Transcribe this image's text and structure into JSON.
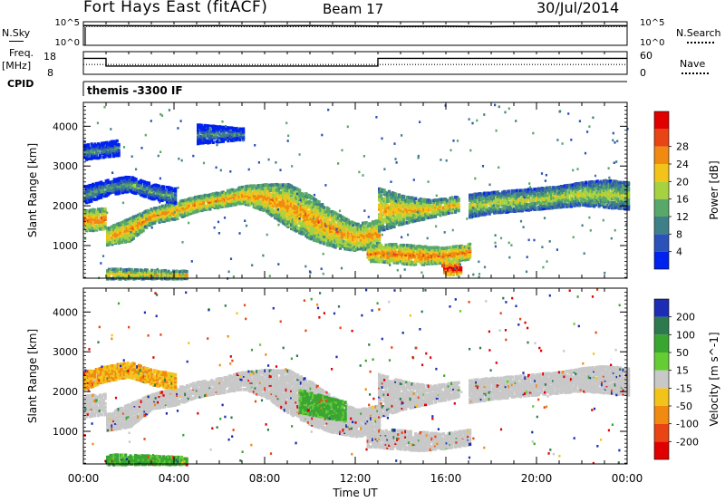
{
  "header": {
    "station": "Fort Hays East (fitACF)",
    "beam": "Beam 17",
    "date": "30/Jul/2014"
  },
  "side_labels": {
    "nsky": "N.Sky",
    "freq": "Freq.",
    "freq_unit": "[MHz]",
    "cpid": "CPID",
    "nsearch": "N.Search",
    "nave": "Nave",
    "cpid_value": "themis -3300 IF"
  },
  "chart_data": [
    {
      "type": "line",
      "panel": "noise",
      "ylim_left": [
        1,
        100000
      ],
      "yticks_left": [
        "10^5",
        "10^0"
      ],
      "yticks_right": [
        "10^5",
        "10^0"
      ],
      "series": [
        {
          "name": "N.Sky",
          "style": "solid",
          "x": [
            0,
            1,
            2,
            4,
            6,
            8,
            10,
            12,
            14,
            16,
            18,
            20,
            22,
            24
          ],
          "y": [
            30000,
            28000,
            28000,
            25000,
            30000,
            25000,
            30000,
            25000,
            20000,
            22000,
            18000,
            22000,
            25000,
            28000
          ]
        },
        {
          "name": "N.Search",
          "style": "dotted",
          "x": [
            0,
            4,
            8,
            12,
            16,
            20,
            24
          ],
          "y": [
            20000,
            18000,
            16000,
            15000,
            14000,
            15000,
            18000
          ]
        }
      ]
    },
    {
      "type": "line",
      "panel": "frequency",
      "yticks_left": [
        "18",
        "8"
      ],
      "yticks_right": [
        "60",
        "0"
      ],
      "series": [
        {
          "name": "Freq.",
          "style": "solid",
          "x": [
            0,
            1,
            1,
            13,
            13,
            24
          ],
          "y": [
            16,
            16,
            11,
            11,
            16,
            16
          ]
        },
        {
          "name": "Nave",
          "style": "dotted",
          "x": [
            0,
            24
          ],
          "y": [
            12,
            12
          ]
        }
      ],
      "cpid": {
        "x": [
          0,
          24
        ],
        "y": [
          0,
          0
        ]
      }
    },
    {
      "type": "heatmap",
      "panel": "power",
      "xlabel": "",
      "ylabel": "Slant Range [km]",
      "xlim": [
        0,
        24
      ],
      "ylim": [
        180,
        4600
      ],
      "yticks": [
        1000,
        2000,
        3000,
        4000
      ],
      "colorbar": {
        "label": "Power [dB]",
        "ticks": [
          4,
          8,
          12,
          16,
          20,
          24,
          28
        ],
        "colors": [
          "#0022ee",
          "#2a52b8",
          "#3f7f88",
          "#58a86a",
          "#a6d242",
          "#f2c41a",
          "#f08a10",
          "#e84414",
          "#e00000"
        ]
      },
      "bands": [
        {
          "x": [
            0.0,
            0.9
          ],
          "y0": [
            1400,
            1450
          ],
          "y1": [
            1950,
            2000
          ],
          "center": 22
        },
        {
          "x": [
            1.0,
            13.0
          ],
          "y0": [
            1050,
            1150,
            1600,
            1700,
            1900,
            2000,
            2100,
            1900,
            1500,
            1200,
            1000,
            900,
            1000
          ],
          "y1": [
            1500,
            1750,
            2000,
            2150,
            2300,
            2400,
            2550,
            2600,
            2600,
            2300,
            1900,
            1600,
            1700
          ],
          "center": 20
        },
        {
          "x": [
            13.0,
            16.5
          ],
          "y0": [
            1400,
            1600,
            1750,
            1900
          ],
          "y1": [
            2500,
            2300,
            2200,
            2300
          ],
          "center": 18
        },
        {
          "x": [
            12.5,
            17.0
          ],
          "y0": [
            650,
            600,
            550,
            600,
            700
          ],
          "y1": [
            1050,
            1100,
            1050,
            1000,
            1100
          ],
          "center": 22
        },
        {
          "x": [
            17.0,
            24.0
          ],
          "y0": [
            1750,
            1850,
            1900,
            1950,
            2000,
            2050,
            2000,
            1950
          ],
          "y1": [
            2350,
            2400,
            2450,
            2500,
            2550,
            2650,
            2700,
            2650
          ],
          "center": 14
        },
        {
          "x": [
            0.0,
            4.0
          ],
          "y0": [
            2100,
            2300,
            2400,
            2200,
            2100
          ],
          "y1": [
            2550,
            2700,
            2800,
            2600,
            2500
          ],
          "center": 8
        },
        {
          "x": [
            0.0,
            1.5
          ],
          "y0": [
            3200,
            3300
          ],
          "y1": [
            3600,
            3700
          ],
          "center": 6
        },
        {
          "x": [
            5.0,
            7.0
          ],
          "y0": [
            3600,
            3700
          ],
          "y1": [
            4100,
            4000
          ],
          "center": 6
        },
        {
          "x": [
            15.8,
            16.6
          ],
          "y0": [
            300,
            300
          ],
          "y1": [
            700,
            650
          ],
          "center": 28
        },
        {
          "x": [
            1.0,
            4.5
          ],
          "y0": [
            200,
            200
          ],
          "y1": [
            480,
            420
          ],
          "center": 18
        }
      ]
    },
    {
      "type": "heatmap",
      "panel": "velocity",
      "xlabel": "Time UT",
      "ylabel": "Slant Range [km]",
      "xlim": [
        0,
        24
      ],
      "ylim": [
        180,
        4600
      ],
      "xticks": [
        "00:00",
        "04:00",
        "08:00",
        "12:00",
        "16:00",
        "20:00",
        "00:00"
      ],
      "yticks": [
        1000,
        2000,
        3000,
        4000
      ],
      "colorbar": {
        "label": "Velocity [m s^-1]",
        "ticks": [
          "200",
          "100",
          "50",
          "15",
          "-15",
          "-50",
          "-100",
          "-200"
        ],
        "colors": [
          "#1c2cb4",
          "#2d7a4e",
          "#3aa632",
          "#66cc33",
          "#c8c8c8",
          "#f2c41a",
          "#f08a10",
          "#e84414",
          "#e00000"
        ]
      },
      "bands": [
        {
          "x": [
            0.0,
            0.9
          ],
          "y0": [
            1400,
            1450
          ],
          "y1": [
            1950,
            2000
          ],
          "center": 0
        },
        {
          "x": [
            1.0,
            13.0
          ],
          "y0": [
            1050,
            1150,
            1600,
            1700,
            1900,
            2000,
            2100,
            1900,
            1500,
            1200,
            1000,
            900,
            1000
          ],
          "y1": [
            1500,
            1750,
            2000,
            2150,
            2300,
            2400,
            2550,
            2600,
            2600,
            2300,
            1900,
            1600,
            1700
          ],
          "center": 0
        },
        {
          "x": [
            13.0,
            16.5
          ],
          "y0": [
            1400,
            1600,
            1750,
            1900
          ],
          "y1": [
            2500,
            2300,
            2200,
            2300
          ],
          "center": 0
        },
        {
          "x": [
            12.5,
            17.0
          ],
          "y0": [
            650,
            600,
            550,
            600,
            700
          ],
          "y1": [
            1050,
            1100,
            1050,
            1000,
            1100
          ],
          "center": 0
        },
        {
          "x": [
            17.0,
            24.0
          ],
          "y0": [
            1750,
            1850,
            1900,
            1950,
            2000,
            2050,
            2000,
            1950
          ],
          "y1": [
            2350,
            2400,
            2450,
            2500,
            2550,
            2650,
            2700,
            2650
          ],
          "center": 0
        },
        {
          "x": [
            0.0,
            4.0
          ],
          "y0": [
            2100,
            2300,
            2400,
            2200,
            2100
          ],
          "y1": [
            2550,
            2700,
            2800,
            2600,
            2500
          ],
          "center": -30
        },
        {
          "x": [
            9.5,
            11.5
          ],
          "y0": [
            1500,
            1300
          ],
          "y1": [
            2100,
            1800
          ],
          "center": 40
        },
        {
          "x": [
            1.0,
            4.5
          ],
          "y0": [
            200,
            200
          ],
          "y1": [
            480,
            420
          ],
          "center": 40
        }
      ]
    }
  ]
}
